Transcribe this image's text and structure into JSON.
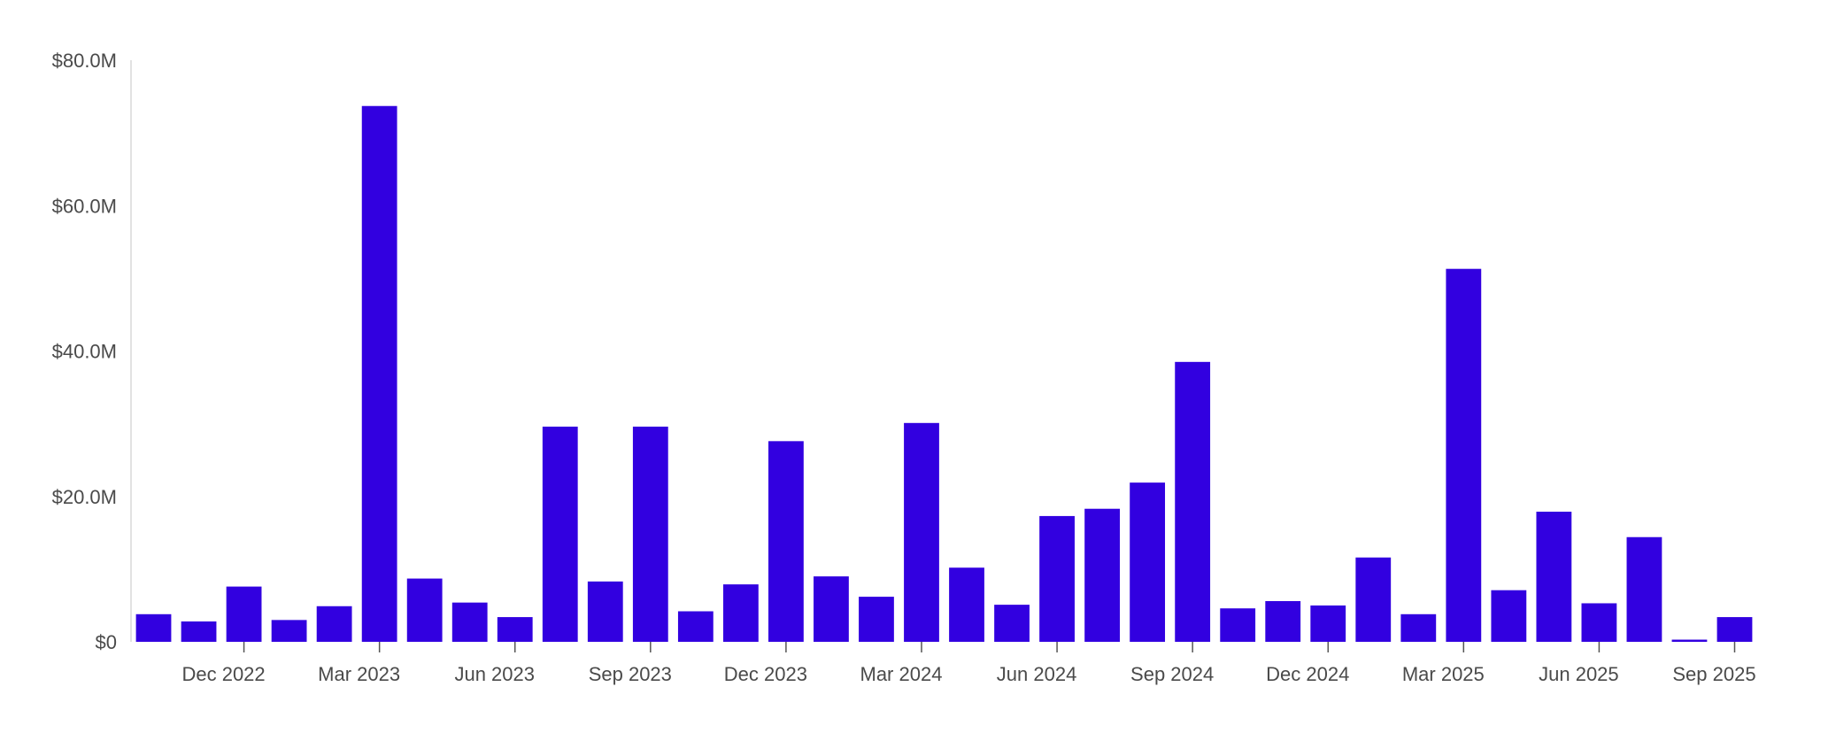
{
  "chart_data": {
    "type": "bar",
    "title": "",
    "xlabel": "",
    "ylabel": "",
    "ylim": [
      0,
      80
    ],
    "y_unit": "$M",
    "y_ticks": [
      {
        "value": 0,
        "label": "$0"
      },
      {
        "value": 20,
        "label": "$20.0M"
      },
      {
        "value": 40,
        "label": "$40.0M"
      },
      {
        "value": 60,
        "label": "$60.0M"
      },
      {
        "value": 80,
        "label": "$80.0M"
      }
    ],
    "x_ticks": [
      {
        "category": "2022-12",
        "label": "Dec 2022"
      },
      {
        "category": "2023-03",
        "label": "Mar 2023"
      },
      {
        "category": "2023-06",
        "label": "Jun 2023"
      },
      {
        "category": "2023-09",
        "label": "Sep 2023"
      },
      {
        "category": "2023-12",
        "label": "Dec 2023"
      },
      {
        "category": "2024-03",
        "label": "Mar 2024"
      },
      {
        "category": "2024-06",
        "label": "Jun 2024"
      },
      {
        "category": "2024-09",
        "label": "Sep 2024"
      },
      {
        "category": "2024-12",
        "label": "Dec 2024"
      },
      {
        "category": "2025-03",
        "label": "Mar 2025"
      },
      {
        "category": "2025-06",
        "label": "Jun 2025"
      },
      {
        "category": "2025-09",
        "label": "Sep 2025"
      }
    ],
    "categories": [
      "2022-10",
      "2022-11",
      "2022-12",
      "2023-01",
      "2023-02",
      "2023-03",
      "2023-04",
      "2023-05",
      "2023-06",
      "2023-07",
      "2023-08",
      "2023-09",
      "2023-10",
      "2023-11",
      "2023-12",
      "2024-01",
      "2024-02",
      "2024-03",
      "2024-04",
      "2024-05",
      "2024-06",
      "2024-07",
      "2024-08",
      "2024-09",
      "2024-10",
      "2024-11",
      "2024-12",
      "2025-01",
      "2025-02",
      "2025-03",
      "2025-04",
      "2025-05",
      "2025-06",
      "2025-07",
      "2025-08",
      "2025-09"
    ],
    "values": [
      3.8,
      2.8,
      7.6,
      3.0,
      4.9,
      73.7,
      8.7,
      5.4,
      3.4,
      29.6,
      8.3,
      29.6,
      4.2,
      7.9,
      27.6,
      9.0,
      6.2,
      30.1,
      10.2,
      5.1,
      17.3,
      18.3,
      21.9,
      38.5,
      4.6,
      5.6,
      5.0,
      11.6,
      3.8,
      51.3,
      7.1,
      17.9,
      5.3,
      14.4,
      0.3,
      3.4
    ],
    "bar_color": "#3200e0",
    "grid": false,
    "legend": "none"
  }
}
